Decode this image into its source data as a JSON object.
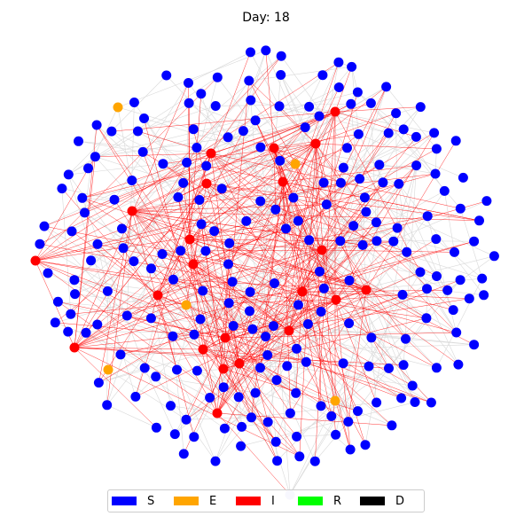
{
  "title": "Day: 18",
  "legend": [
    {
      "key": "S",
      "label": "S",
      "color": "#0000ff"
    },
    {
      "key": "E",
      "label": "E",
      "color": "#ffa500"
    },
    {
      "key": "I",
      "label": "I",
      "color": "#ff0000"
    },
    {
      "key": "R",
      "label": "R",
      "color": "#00ff00"
    },
    {
      "key": "D",
      "label": "D",
      "color": "#000000"
    }
  ],
  "colors": {
    "edge_normal": "#d9d9d9",
    "edge_infected": "#ff0000",
    "faded_node": "#c8c8f5"
  },
  "chart_data": {
    "type": "network",
    "day": 18,
    "state_counts_approx": {
      "S": 220,
      "E": 5,
      "I": 27,
      "R": 0,
      "D": 0
    }
  }
}
